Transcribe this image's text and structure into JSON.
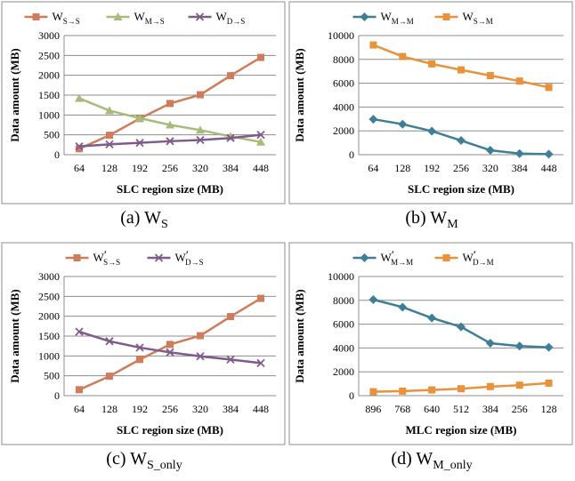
{
  "colors": {
    "orange_red": "#d07c5b",
    "olive_green": "#a8bb78",
    "purple": "#7e5b89",
    "teal": "#3e7f96",
    "orange": "#e9923a",
    "frame": "#8c8c8c",
    "grid": "#8c8c8c"
  },
  "captions": [
    {
      "prefix": "(a) W",
      "sub": "S",
      "suffix": ""
    },
    {
      "prefix": "(b) W",
      "sub": "M",
      "suffix": ""
    },
    {
      "prefix": "(c) W",
      "sub": "S_only",
      "suffix": ""
    },
    {
      "prefix": "(d) W",
      "sub": "M_only",
      "suffix": ""
    }
  ],
  "chart_data": [
    {
      "type": "line",
      "xlabel": "SLC region size (MB)",
      "ylabel": "Data amount (MB)",
      "categories": [
        "64",
        "128",
        "192",
        "256",
        "320",
        "384",
        "448"
      ],
      "ylim": [
        0,
        3000
      ],
      "yticks": [
        "0",
        "500",
        "1000",
        "1500",
        "2000",
        "2500",
        "3000"
      ],
      "grid": true,
      "legend": "top",
      "series": [
        {
          "name": "W",
          "sub": "S→S",
          "prime": false,
          "marker": "square",
          "color_key": "orange_red",
          "values": [
            150,
            490,
            910,
            1290,
            1510,
            1990,
            2450
          ]
        },
        {
          "name": "W",
          "sub": "M→S",
          "prime": false,
          "marker": "triangle",
          "color_key": "olive_green",
          "values": [
            1420,
            1110,
            920,
            750,
            620,
            460,
            320
          ]
        },
        {
          "name": "W",
          "sub": "D→S",
          "prime": false,
          "marker": "x",
          "color_key": "purple",
          "values": [
            210,
            260,
            300,
            340,
            370,
            420,
            500
          ]
        }
      ]
    },
    {
      "type": "line",
      "xlabel": "SLC region size (MB)",
      "ylabel": "Data amount (MB)",
      "categories": [
        "64",
        "128",
        "192",
        "256",
        "320",
        "384",
        "448"
      ],
      "ylim": [
        0,
        10000
      ],
      "yticks": [
        "0",
        "2000",
        "4000",
        "6000",
        "8000",
        "10000"
      ],
      "grid": true,
      "legend": "top",
      "series": [
        {
          "name": "W",
          "sub": "M→M",
          "prime": false,
          "marker": "diamond",
          "color_key": "teal",
          "values": [
            2980,
            2560,
            1980,
            1190,
            370,
            90,
            50
          ]
        },
        {
          "name": "W",
          "sub": "S→M",
          "prime": false,
          "marker": "square",
          "color_key": "orange",
          "values": [
            9210,
            8240,
            7620,
            7120,
            6640,
            6180,
            5650
          ]
        }
      ]
    },
    {
      "type": "line",
      "xlabel": "SLC region size (MB)",
      "ylabel": "Data amount (MB)",
      "categories": [
        "64",
        "128",
        "192",
        "256",
        "320",
        "384",
        "448"
      ],
      "ylim": [
        0,
        3000
      ],
      "yticks": [
        "0",
        "500",
        "1000",
        "1500",
        "2000",
        "2500",
        "3000"
      ],
      "grid": true,
      "legend": "top",
      "series": [
        {
          "name": "W",
          "sub": "S→S",
          "prime": true,
          "marker": "square",
          "color_key": "orange_red",
          "values": [
            150,
            490,
            910,
            1290,
            1510,
            1990,
            2450
          ]
        },
        {
          "name": "W",
          "sub": "D→S",
          "prime": true,
          "marker": "x",
          "color_key": "purple",
          "values": [
            1610,
            1370,
            1210,
            1090,
            990,
            910,
            820
          ]
        }
      ]
    },
    {
      "type": "line",
      "xlabel": "MLC region size (MB)",
      "ylabel": "Data amount (MB)",
      "categories": [
        "896",
        "768",
        "640",
        "512",
        "384",
        "256",
        "128"
      ],
      "ylim": [
        0,
        10000
      ],
      "yticks": [
        "0",
        "2000",
        "4000",
        "6000",
        "8000",
        "10000"
      ],
      "grid": true,
      "legend": "top",
      "series": [
        {
          "name": "W",
          "sub": "M→M",
          "prime": true,
          "marker": "diamond",
          "color_key": "teal",
          "values": [
            8060,
            7430,
            6520,
            5770,
            4400,
            4160,
            4060
          ]
        },
        {
          "name": "W",
          "sub": "D→M",
          "prime": true,
          "marker": "square",
          "color_key": "orange",
          "values": [
            330,
            380,
            480,
            580,
            760,
            880,
            1050
          ]
        }
      ]
    }
  ]
}
